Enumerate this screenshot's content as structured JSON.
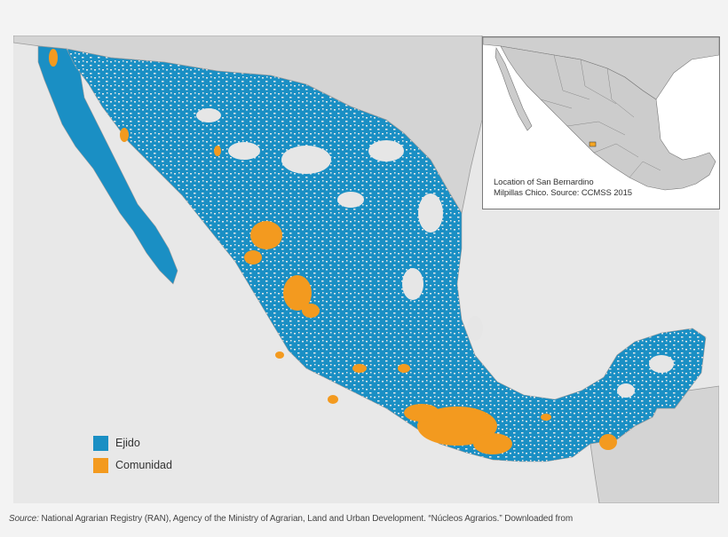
{
  "legend": {
    "items": [
      {
        "label": "Ejido",
        "color": "#1a8fc4"
      },
      {
        "label": "Comunidad",
        "color": "#f39a1f"
      }
    ]
  },
  "inset": {
    "caption_line1": "Location of San Bernardino",
    "caption_line2": "Milpillas Chico. Source: CCMSS 2015",
    "highlight_color": "#f5a623"
  },
  "source": {
    "label": "Source:",
    "text": " National Agrarian Registry (RAN), Agency of the Ministry of Agrarian, Land and Urban Development. “Núcleos Agrarios.” Downloaded from"
  },
  "colors": {
    "ejido": "#1a8fc4",
    "comunidad": "#f39a1f",
    "land_other": "#e6e6e6",
    "neighbor_land": "#d4d4d4",
    "background": "#f3f3f3"
  }
}
